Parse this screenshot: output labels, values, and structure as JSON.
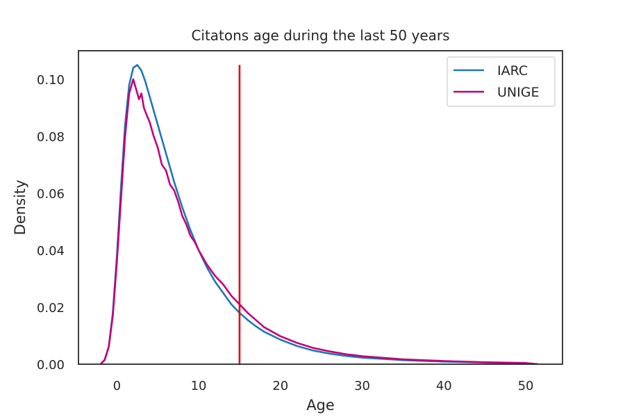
{
  "chart_data": {
    "type": "line",
    "title": "Citatons age during the last 50 years",
    "xlabel": "Age",
    "ylabel": "Density",
    "xlim": [
      -4.7,
      54.5
    ],
    "ylim": [
      0,
      0.11
    ],
    "xticks": [
      0,
      10,
      20,
      30,
      40,
      50
    ],
    "xtick_labels": [
      "0",
      "10",
      "20",
      "30",
      "40",
      "50"
    ],
    "yticks": [
      0.0,
      0.02,
      0.04,
      0.06,
      0.08,
      0.1
    ],
    "ytick_labels": [
      "0.00",
      "0.02",
      "0.04",
      "0.06",
      "0.08",
      "0.10"
    ],
    "grid": false,
    "legend_position": "top-right",
    "reference_line": {
      "x": 15,
      "y_range": [
        0,
        0.105
      ],
      "color": "#e8000b"
    },
    "series": [
      {
        "name": "IARC",
        "color": "#1f77b4",
        "x": [
          -2,
          -1.5,
          -1,
          -0.5,
          0,
          0.5,
          1,
          1.5,
          2,
          2.5,
          3,
          3.5,
          4,
          5,
          6,
          7,
          8,
          9,
          10,
          11,
          12,
          13,
          14,
          15,
          16,
          17,
          18,
          20,
          22,
          24,
          26,
          28,
          30,
          35,
          40,
          45,
          50,
          51.5
        ],
        "y": [
          0.0,
          0.0015,
          0.006,
          0.018,
          0.038,
          0.062,
          0.084,
          0.098,
          0.104,
          0.105,
          0.103,
          0.099,
          0.094,
          0.084,
          0.074,
          0.064,
          0.055,
          0.047,
          0.04,
          0.034,
          0.029,
          0.025,
          0.021,
          0.018,
          0.0155,
          0.0133,
          0.0114,
          0.0086,
          0.0064,
          0.0048,
          0.0037,
          0.0029,
          0.0023,
          0.0014,
          0.0009,
          0.0006,
          0.0003,
          0.0
        ]
      },
      {
        "name": "UNIGE",
        "color": "#c20078",
        "x": [
          -2,
          -1.5,
          -1,
          -0.5,
          0,
          0.5,
          1,
          1.5,
          2,
          2.3,
          2.7,
          3,
          3.3,
          3.7,
          4,
          4.5,
          5,
          5.5,
          6,
          6.5,
          7,
          7.5,
          8,
          8.5,
          9,
          9.5,
          10,
          11,
          12,
          13,
          14,
          15,
          16,
          17,
          18,
          20,
          22,
          24,
          26,
          28,
          30,
          35,
          40,
          45,
          50,
          51.5
        ],
        "y": [
          0.0,
          0.0015,
          0.006,
          0.017,
          0.036,
          0.058,
          0.08,
          0.095,
          0.1,
          0.097,
          0.093,
          0.095,
          0.09,
          0.087,
          0.085,
          0.08,
          0.076,
          0.07,
          0.068,
          0.063,
          0.061,
          0.057,
          0.052,
          0.049,
          0.045,
          0.043,
          0.04,
          0.035,
          0.031,
          0.028,
          0.024,
          0.021,
          0.018,
          0.0155,
          0.013,
          0.0098,
          0.0075,
          0.0057,
          0.0045,
          0.0035,
          0.0028,
          0.0017,
          0.0011,
          0.0007,
          0.0004,
          0.0
        ]
      }
    ]
  }
}
